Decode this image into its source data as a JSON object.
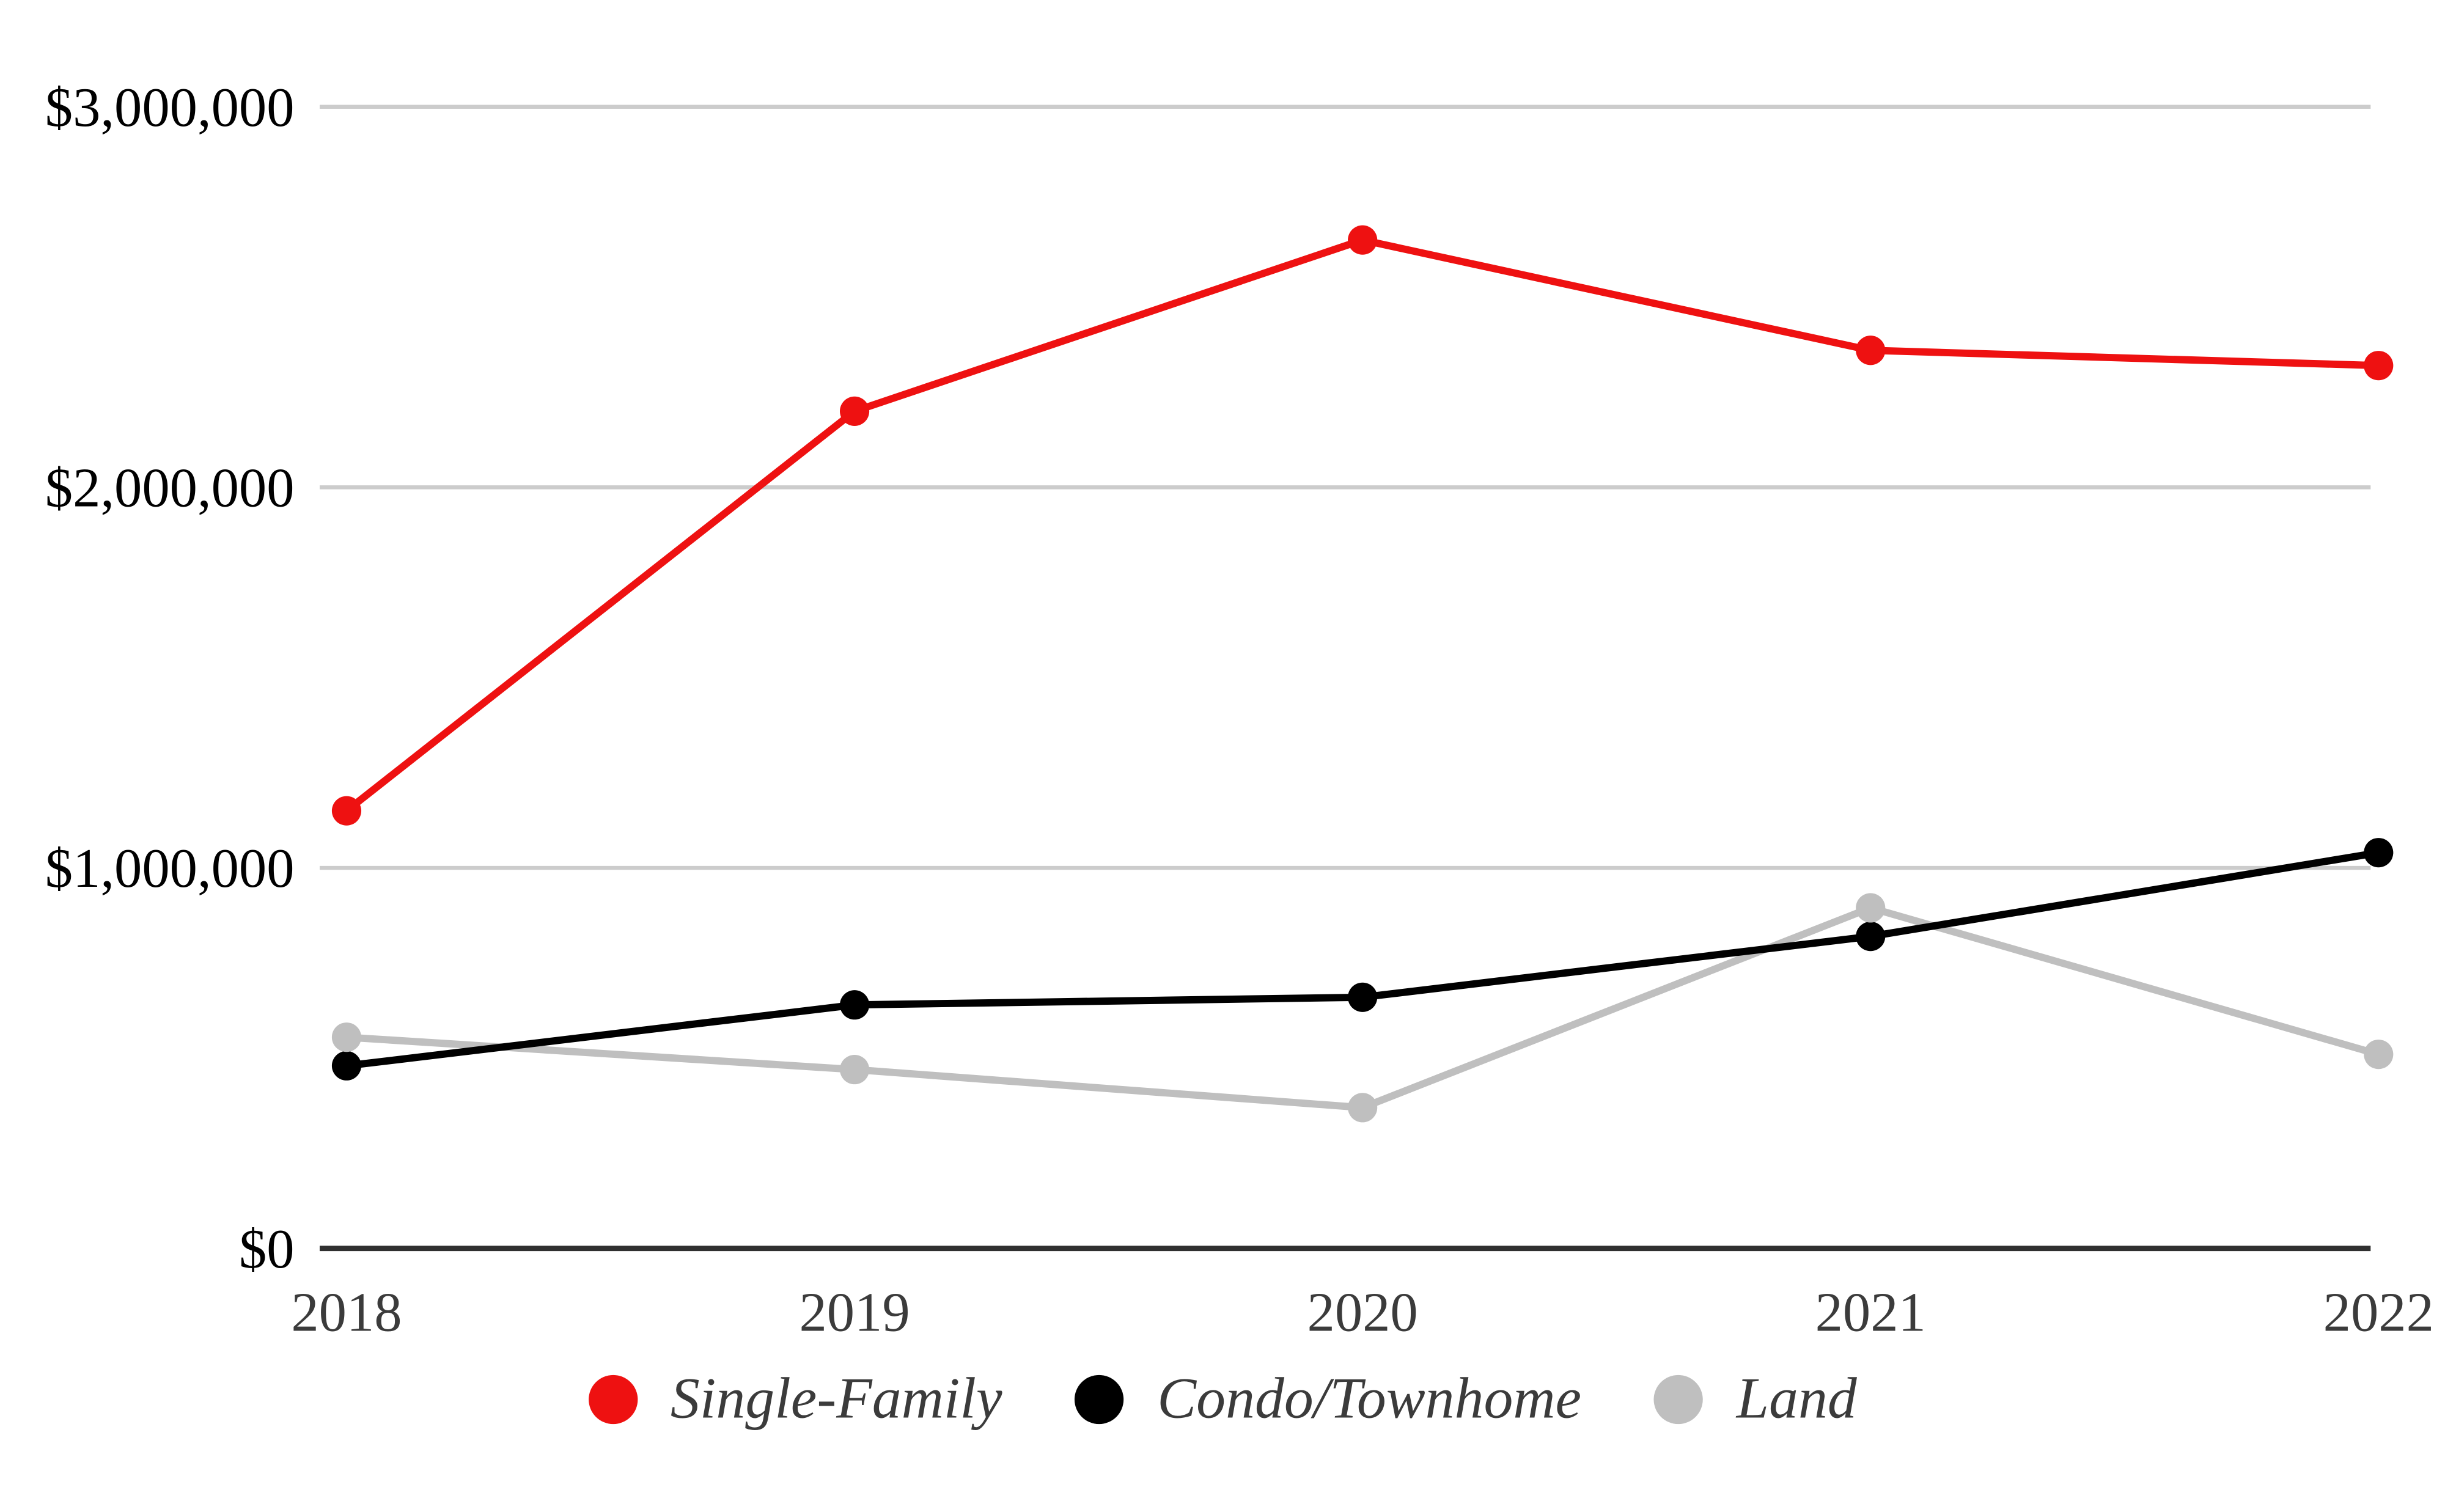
{
  "chart_data": {
    "type": "line",
    "title": "",
    "categories": [
      "2018",
      "2019",
      "2020",
      "2021",
      "2022"
    ],
    "series": [
      {
        "name": "Single-Family",
        "color": "#ee1111",
        "values": [
          1150000,
          2200000,
          2650000,
          2360000,
          2320000
        ]
      },
      {
        "name": "Condo/Townhome",
        "color": "#000000",
        "values": [
          480000,
          640000,
          660000,
          820000,
          1040000
        ]
      },
      {
        "name": "Land",
        "color": "#bfbfbf",
        "values": [
          555000,
          470000,
          370000,
          895000,
          510000
        ]
      }
    ],
    "ylim": [
      0,
      3000000
    ],
    "yticks": [
      {
        "value": 0,
        "label": "$0"
      },
      {
        "value": 1000000,
        "label": "$1,000,000"
      },
      {
        "value": 2000000,
        "label": "$2,000,000"
      },
      {
        "value": 3000000,
        "label": "$3,000,000"
      }
    ],
    "grid": "horizontal",
    "legend_position": "bottom-center"
  },
  "colors": {
    "background": "#ffffff",
    "gridline": "#cccccc",
    "axis_line": "#303030",
    "y_tick_label": "#000000",
    "x_tick_label": "#3b3b3b",
    "legend_text": "#3b3b3b"
  }
}
